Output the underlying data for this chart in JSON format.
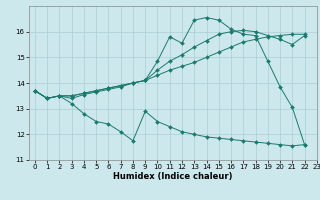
{
  "xlabel": "Humidex (Indice chaleur)",
  "bg_color": "#cde8ec",
  "grid_color": "#aacdd4",
  "line_color": "#1a7a6e",
  "xlim": [
    -0.5,
    23
  ],
  "ylim": [
    11,
    17
  ],
  "yticks": [
    11,
    12,
    13,
    14,
    15,
    16
  ],
  "xticks": [
    0,
    1,
    2,
    3,
    4,
    5,
    6,
    7,
    8,
    9,
    10,
    11,
    12,
    13,
    14,
    15,
    16,
    17,
    18,
    19,
    20,
    21,
    22,
    23
  ],
  "series": [
    {
      "x": [
        0,
        1,
        2,
        3,
        4,
        5,
        6,
        7,
        8,
        9,
        10,
        11,
        12,
        13,
        14,
        15,
        16,
        17,
        18,
        19,
        20,
        21,
        22
      ],
      "y": [
        13.7,
        13.4,
        13.5,
        13.2,
        12.8,
        12.5,
        12.4,
        12.1,
        11.75,
        12.9,
        12.5,
        12.3,
        12.1,
        12.0,
        11.9,
        11.85,
        11.8,
        11.75,
        11.7,
        11.65,
        11.6,
        11.55,
        11.6
      ]
    },
    {
      "x": [
        0,
        1,
        2,
        3,
        4,
        5,
        6,
        7,
        8,
        9,
        10,
        11,
        12,
        13,
        14,
        15,
        16,
        17,
        18,
        19,
        20,
        21,
        22
      ],
      "y": [
        13.7,
        13.4,
        13.5,
        13.5,
        13.6,
        13.7,
        13.8,
        13.9,
        14.0,
        14.1,
        14.3,
        14.5,
        14.65,
        14.8,
        15.0,
        15.2,
        15.4,
        15.6,
        15.7,
        15.8,
        15.85,
        15.9,
        15.9
      ]
    },
    {
      "x": [
        0,
        1,
        2,
        3,
        4,
        5,
        6,
        7,
        8,
        9,
        10,
        11,
        12,
        13,
        14,
        15,
        16,
        17,
        18,
        19,
        20,
        21,
        22
      ],
      "y": [
        13.7,
        13.4,
        13.5,
        13.5,
        13.6,
        13.7,
        13.8,
        13.9,
        14.0,
        14.1,
        14.85,
        15.8,
        15.55,
        16.45,
        16.55,
        16.45,
        16.1,
        15.9,
        15.85,
        14.85,
        13.85,
        13.05,
        11.6
      ]
    },
    {
      "x": [
        0,
        1,
        2,
        3,
        4,
        5,
        6,
        7,
        8,
        9,
        10,
        11,
        12,
        13,
        14,
        15,
        16,
        17,
        18,
        19,
        20,
        21,
        22
      ],
      "y": [
        13.7,
        13.4,
        13.5,
        13.4,
        13.55,
        13.65,
        13.75,
        13.85,
        14.0,
        14.1,
        14.5,
        14.85,
        15.1,
        15.4,
        15.65,
        15.9,
        16.0,
        16.05,
        16.0,
        15.85,
        15.7,
        15.5,
        15.85
      ]
    }
  ]
}
